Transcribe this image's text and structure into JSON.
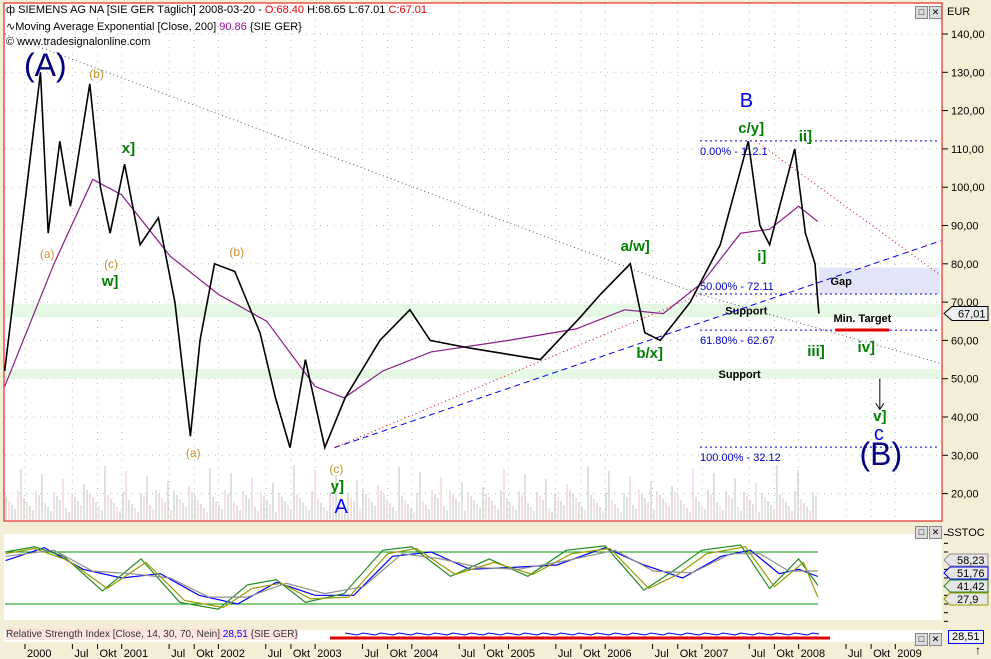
{
  "header": {
    "symbol_line": "SIEMENS AG NA [SIE GER  Täglich] 2008-03-20 - ",
    "open": "O:68.40",
    "hl": " H:68.65 L:67.01 ",
    "close": "C:67.01",
    "ma_line": "Moving Average Exponential [Close, 200] ",
    "ma_value": "90.86",
    "ma_suffix": " {SIE GER}",
    "copyright": "© www.tradesignalonline.com"
  },
  "currency": "EUR",
  "stoch_title": "SSTOC",
  "rsi_line": "Relative Strength Index [Close, 14, 30, 70, Nein] ",
  "rsi_value": "28,51",
  "rsi_suffix": " {SIE GER}",
  "rsi_axis_value": "28,51",
  "colors": {
    "price": "#000000",
    "ma": "#8b1a8b",
    "frame": "#e00000",
    "fib": "#0000cc",
    "wave_green": "#008000",
    "wave_orange": "#c89030",
    "wave_blue": "#0000ff",
    "wave_navy": "#000080"
  },
  "chart_data": {
    "type": "line",
    "ylim": [
      12,
      145
    ],
    "xlim": [
      1999.74,
      2009.45
    ],
    "yticks": [
      "20,00",
      "30,00",
      "40,00",
      "50,00",
      "60,00",
      "70,00",
      "80,00",
      "90,00",
      "100,00",
      "110,00",
      "120,00",
      "130,00",
      "140,00"
    ],
    "ytick_values": [
      20,
      30,
      40,
      50,
      60,
      70,
      80,
      90,
      100,
      110,
      120,
      130,
      140
    ],
    "xticks": [
      {
        "label": "2000",
        "x": 2000
      },
      {
        "label": "Jul",
        "x": 2000.49
      },
      {
        "label": "Okt",
        "x": 2000.75
      },
      {
        "label": "2001",
        "x": 2001
      },
      {
        "label": "Jul",
        "x": 2001.49
      },
      {
        "label": "Okt",
        "x": 2001.75
      },
      {
        "label": "2002",
        "x": 2002
      },
      {
        "label": "Jul",
        "x": 2002.49
      },
      {
        "label": "Okt",
        "x": 2002.75
      },
      {
        "label": "2003",
        "x": 2003
      },
      {
        "label": "Jul",
        "x": 2003.49
      },
      {
        "label": "Okt",
        "x": 2003.75
      },
      {
        "label": "2004",
        "x": 2004
      },
      {
        "label": "Jul",
        "x": 2004.49
      },
      {
        "label": "Okt",
        "x": 2004.75
      },
      {
        "label": "2005",
        "x": 2005
      },
      {
        "label": "Jul",
        "x": 2005.49
      },
      {
        "label": "Okt",
        "x": 2005.75
      },
      {
        "label": "2006",
        "x": 2006
      },
      {
        "label": "Jul",
        "x": 2006.49
      },
      {
        "label": "Okt",
        "x": 2006.75
      },
      {
        "label": "2007",
        "x": 2007
      },
      {
        "label": "Jul",
        "x": 2007.49
      },
      {
        "label": "Okt",
        "x": 2007.75
      },
      {
        "label": "2008",
        "x": 2008
      },
      {
        "label": "Jul",
        "x": 2008.49
      },
      {
        "label": "Okt",
        "x": 2008.75
      },
      {
        "label": "2009",
        "x": 2009
      }
    ],
    "last_price_label": "67,01",
    "series": [
      {
        "name": "SIEMENS AG NA",
        "points": [
          [
            1999.79,
            52
          ],
          [
            2000.16,
            130
          ],
          [
            2000.24,
            88
          ],
          [
            2000.36,
            112
          ],
          [
            2000.47,
            95
          ],
          [
            2000.67,
            127
          ],
          [
            2000.78,
            100
          ],
          [
            2000.88,
            88
          ],
          [
            2001.03,
            106
          ],
          [
            2001.19,
            85
          ],
          [
            2001.38,
            92
          ],
          [
            2001.55,
            70
          ],
          [
            2001.71,
            35
          ],
          [
            2001.81,
            60
          ],
          [
            2001.96,
            80
          ],
          [
            2002.17,
            78
          ],
          [
            2002.43,
            62
          ],
          [
            2002.59,
            45
          ],
          [
            2002.74,
            32
          ],
          [
            2002.9,
            55
          ],
          [
            2003.1,
            32
          ],
          [
            2003.31,
            45
          ],
          [
            2003.67,
            60
          ],
          [
            2003.98,
            68
          ],
          [
            2004.19,
            60
          ],
          [
            2004.6,
            58
          ],
          [
            2005.33,
            55
          ],
          [
            2005.74,
            66
          ],
          [
            2005.95,
            72
          ],
          [
            2006.26,
            80
          ],
          [
            2006.41,
            62
          ],
          [
            2006.57,
            60
          ],
          [
            2006.88,
            70
          ],
          [
            2007.19,
            85
          ],
          [
            2007.48,
            112
          ],
          [
            2007.6,
            90
          ],
          [
            2007.7,
            85
          ],
          [
            2007.96,
            110
          ],
          [
            2008.07,
            88
          ],
          [
            2008.17,
            80
          ],
          [
            2008.2,
            70
          ],
          [
            2008.21,
            67.01
          ]
        ]
      },
      {
        "name": "Moving Average Exponential",
        "points": [
          [
            1999.79,
            48
          ],
          [
            2000.3,
            80
          ],
          [
            2000.7,
            102
          ],
          [
            2001.0,
            98
          ],
          [
            2001.5,
            82
          ],
          [
            2002.0,
            72
          ],
          [
            2002.5,
            65
          ],
          [
            2003.0,
            48
          ],
          [
            2003.3,
            45
          ],
          [
            2003.7,
            52
          ],
          [
            2004.2,
            57
          ],
          [
            2005.0,
            60
          ],
          [
            2005.7,
            63
          ],
          [
            2006.2,
            68
          ],
          [
            2006.6,
            67
          ],
          [
            2007.0,
            75
          ],
          [
            2007.4,
            88
          ],
          [
            2007.7,
            89
          ],
          [
            2008.0,
            95
          ],
          [
            2008.2,
            91
          ]
        ]
      }
    ],
    "fib_levels": [
      {
        "label": "0.00% - 112.1",
        "value": 112.1
      },
      {
        "label": "50.00% - 72.11",
        "value": 72.11
      },
      {
        "label": "61.80% - 62.67",
        "value": 62.67
      },
      {
        "label": "100.00% - 32.12",
        "value": 32.12
      }
    ],
    "zones": [
      {
        "label": "Support",
        "from": 66,
        "to": 69.5,
        "label_x": 2007.46
      },
      {
        "label": "Support",
        "from": 50,
        "to": 52.5,
        "label_x": 2007.39
      },
      {
        "label": "Gap",
        "from": 72.1,
        "to": 79,
        "start": 2008.21,
        "label_x": 2008.44
      }
    ],
    "min_target": {
      "label": "Min. Target",
      "value": 62.7,
      "from": 2008.38,
      "to": 2008.94
    },
    "trendlines": [
      {
        "style": "blue-dashed",
        "from": [
          2003.2,
          32
        ],
        "to": [
          2009.47,
          86
        ]
      },
      {
        "style": "red-dotted",
        "from": [
          2003.2,
          32
        ],
        "to": [
          2006.98,
          72
        ]
      },
      {
        "style": "black-dotted",
        "from": [
          1999.79,
          140
        ],
        "to": [
          2006.98,
          72
        ]
      },
      {
        "style": "black-dotted",
        "from": [
          2006.98,
          72
        ],
        "to": [
          2009.47,
          54
        ]
      },
      {
        "style": "red-dotted",
        "from": [
          2007.56,
          112
        ],
        "to": [
          2009.47,
          77
        ]
      }
    ],
    "annotations": [
      {
        "text": "(A)",
        "color": "navy",
        "size": "xl",
        "x": 2000.21,
        "y": 137.9
      },
      {
        "text": "(b)",
        "color": "orange",
        "x": 2000.74,
        "y": 129.8
      },
      {
        "text": "x]",
        "color": "green",
        "x": 2001.07,
        "y": 110.2
      },
      {
        "text": "(a)",
        "color": "orange",
        "x": 2000.23,
        "y": 82.8
      },
      {
        "text": "(c)",
        "color": "orange",
        "x": 2000.89,
        "y": 80.2
      },
      {
        "text": "w]",
        "color": "green",
        "x": 2000.88,
        "y": 75.5
      },
      {
        "text": "(b)",
        "color": "orange",
        "x": 2002.19,
        "y": 83.3
      },
      {
        "text": "(a)",
        "color": "orange",
        "x": 2001.74,
        "y": 30.9
      },
      {
        "text": "(c)",
        "color": "orange",
        "x": 2003.22,
        "y": 26.7
      },
      {
        "text": "y]",
        "color": "green",
        "x": 2003.23,
        "y": 22.0
      },
      {
        "text": "A",
        "color": "blue",
        "size": "l",
        "x": 2003.27,
        "y": 16.2
      },
      {
        "text": "a/w]",
        "color": "green",
        "x": 2006.31,
        "y": 84.6
      },
      {
        "text": "b/x]",
        "color": "green",
        "x": 2006.46,
        "y": 56.7
      },
      {
        "text": "B",
        "color": "blue",
        "size": "l",
        "x": 2007.46,
        "y": 122.2
      },
      {
        "text": "c/y]",
        "color": "green",
        "x": 2007.51,
        "y": 115.5
      },
      {
        "text": "ii]",
        "color": "green",
        "x": 2008.07,
        "y": 113.4
      },
      {
        "text": "i]",
        "color": "green",
        "x": 2007.62,
        "y": 82.0
      },
      {
        "text": "iii]",
        "color": "green",
        "x": 2008.18,
        "y": 57.2
      },
      {
        "text": "iv]",
        "color": "green",
        "x": 2008.7,
        "y": 59.1
      },
      {
        "text": "v]",
        "color": "green",
        "x": 2008.84,
        "y": 40.3
      },
      {
        "text": "c",
        "color": "blue",
        "size": "l",
        "x": 2008.83,
        "y": 35.3
      },
      {
        "text": "(B)",
        "color": "navy",
        "size": "xl",
        "x": 2008.85,
        "y": 28.8
      }
    ],
    "arrow": {
      "x": 2008.84,
      "from": 50,
      "to": 42
    },
    "stochastic": {
      "ylim": [
        0,
        100
      ],
      "levels": [
        20,
        80
      ],
      "series": [
        {
          "color": "#0000ff",
          "label": "51,76",
          "points": [
            [
              1999.8,
              70
            ],
            [
              2000.2,
              85
            ],
            [
              2000.6,
              60
            ],
            [
              2001.0,
              50
            ],
            [
              2001.4,
              55
            ],
            [
              2001.8,
              30
            ],
            [
              2002.2,
              20
            ],
            [
              2002.6,
              45
            ],
            [
              2003.0,
              30
            ],
            [
              2003.4,
              30
            ],
            [
              2003.8,
              75
            ],
            [
              2004.2,
              80
            ],
            [
              2004.6,
              60
            ],
            [
              2005.0,
              62
            ],
            [
              2005.5,
              65
            ],
            [
              2006.0,
              85
            ],
            [
              2006.4,
              65
            ],
            [
              2006.8,
              50
            ],
            [
              2007.2,
              75
            ],
            [
              2007.5,
              82
            ],
            [
              2007.8,
              55
            ],
            [
              2008.0,
              60
            ],
            [
              2008.2,
              51.76
            ]
          ]
        },
        {
          "color": "#228b22",
          "label": "41,42",
          "points": [
            [
              1999.8,
              80
            ],
            [
              2000.1,
              86
            ],
            [
              2000.4,
              75
            ],
            [
              2000.8,
              35
            ],
            [
              2001.2,
              72
            ],
            [
              2001.6,
              22
            ],
            [
              2002.0,
              14
            ],
            [
              2002.3,
              42
            ],
            [
              2002.6,
              48
            ],
            [
              2002.9,
              22
            ],
            [
              2003.3,
              32
            ],
            [
              2003.7,
              82
            ],
            [
              2004.0,
              86
            ],
            [
              2004.4,
              52
            ],
            [
              2004.8,
              72
            ],
            [
              2005.2,
              52
            ],
            [
              2005.6,
              82
            ],
            [
              2006.0,
              87
            ],
            [
              2006.4,
              36
            ],
            [
              2006.7,
              58
            ],
            [
              2007.0,
              82
            ],
            [
              2007.4,
              88
            ],
            [
              2007.7,
              38
            ],
            [
              2008.0,
              72
            ],
            [
              2008.2,
              41.42
            ]
          ]
        },
        {
          "color": "#9a9a00",
          "label": "27,9",
          "points": [
            [
              1999.8,
              78
            ],
            [
              2000.1,
              84
            ],
            [
              2000.45,
              70
            ],
            [
              2000.85,
              38
            ],
            [
              2001.25,
              68
            ],
            [
              2001.65,
              24
            ],
            [
              2002.05,
              16
            ],
            [
              2002.35,
              38
            ],
            [
              2002.65,
              44
            ],
            [
              2002.95,
              26
            ],
            [
              2003.35,
              28
            ],
            [
              2003.75,
              78
            ],
            [
              2004.05,
              84
            ],
            [
              2004.45,
              54
            ],
            [
              2004.85,
              68
            ],
            [
              2005.25,
              54
            ],
            [
              2005.65,
              78
            ],
            [
              2006.05,
              84
            ],
            [
              2006.45,
              38
            ],
            [
              2006.75,
              54
            ],
            [
              2007.05,
              78
            ],
            [
              2007.45,
              86
            ],
            [
              2007.75,
              40
            ],
            [
              2008.05,
              68
            ],
            [
              2008.2,
              27.9
            ]
          ]
        },
        {
          "color": "#909090",
          "label": "58,23",
          "points": [
            [
              1999.8,
              75
            ],
            [
              2000.3,
              82
            ],
            [
              2000.7,
              58
            ],
            [
              2001.1,
              55
            ],
            [
              2001.5,
              50
            ],
            [
              2001.9,
              28
            ],
            [
              2002.3,
              28
            ],
            [
              2002.7,
              44
            ],
            [
              2003.1,
              32
            ],
            [
              2003.5,
              40
            ],
            [
              2003.9,
              78
            ],
            [
              2004.3,
              72
            ],
            [
              2004.7,
              62
            ],
            [
              2005.1,
              60
            ],
            [
              2005.6,
              70
            ],
            [
              2006.1,
              82
            ],
            [
              2006.5,
              58
            ],
            [
              2006.9,
              56
            ],
            [
              2007.3,
              78
            ],
            [
              2007.6,
              78
            ],
            [
              2007.9,
              58
            ],
            [
              2008.2,
              58.23
            ]
          ]
        }
      ]
    }
  }
}
